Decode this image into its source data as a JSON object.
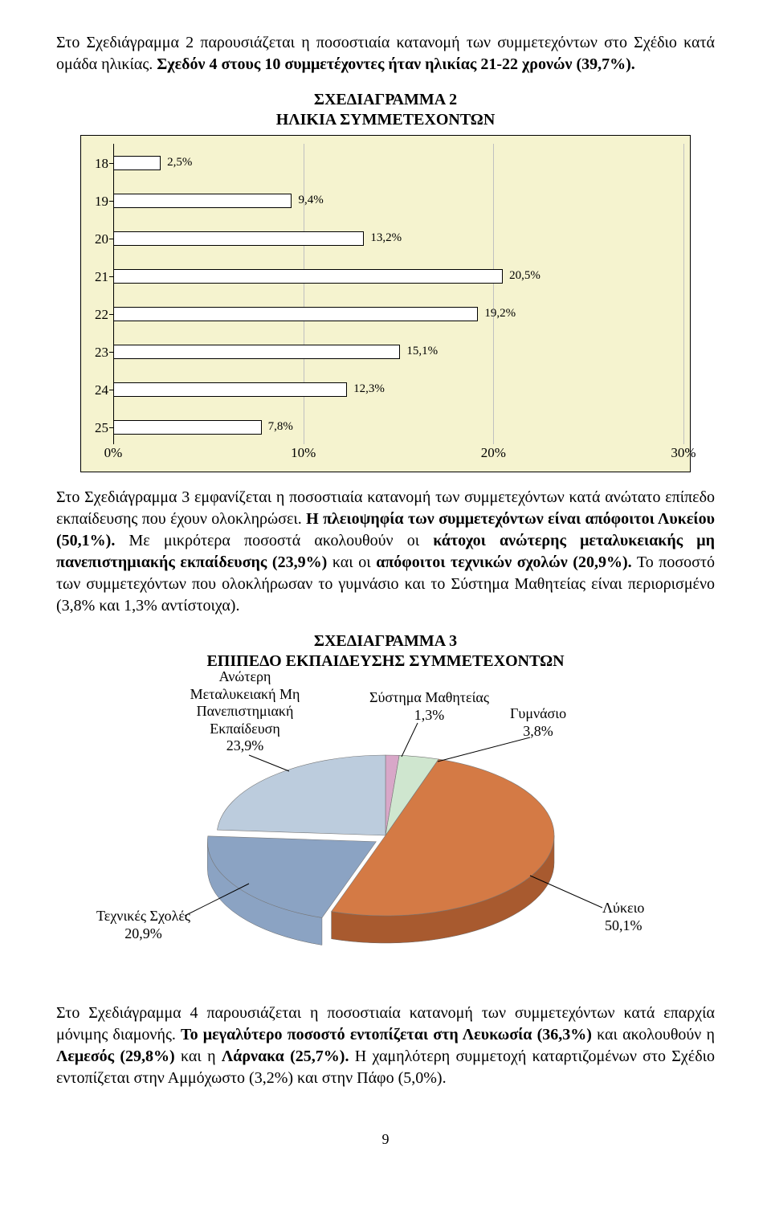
{
  "para1": {
    "t1": "Στο Σχεδιάγραμμα 2 παρουσιάζεται η ποσοστιαία κατανομή των συμμετεχόντων στο Σχέδιο κατά ομάδα ηλικίας.  ",
    "b1": "Σχεδόν 4 στους 10 συμμετέχοντες ήταν ηλικίας 21-22 χρονών (39,7%)."
  },
  "chart2": {
    "type": "bar-horizontal",
    "title_l1": "ΣΧΕΔΙΑΓΡΑΜΜΑ 2",
    "title_l2": "ΗΛΙΚΙΑ ΣΥΜΜΕΤΕΧΟΝΤΩΝ",
    "xlim_max": 30,
    "xticks": [
      {
        "pos": 0,
        "label": "0%"
      },
      {
        "pos": 10,
        "label": "10%"
      },
      {
        "pos": 20,
        "label": "20%"
      },
      {
        "pos": 30,
        "label": "30%"
      }
    ],
    "background": "#f5f3cf",
    "bar_color": "#ffffff",
    "bar_border": "#000000",
    "grid_color": "#c0c0c0",
    "rows": [
      {
        "cat": "18",
        "value": 2.5,
        "label": "2,5%"
      },
      {
        "cat": "19",
        "value": 9.4,
        "label": "9,4%"
      },
      {
        "cat": "20",
        "value": 13.2,
        "label": "13,2%"
      },
      {
        "cat": "21",
        "value": 20.5,
        "label": "20,5%"
      },
      {
        "cat": "22",
        "value": 19.2,
        "label": "19,2%"
      },
      {
        "cat": "23",
        "value": 15.1,
        "label": "15,1%"
      },
      {
        "cat": "24",
        "value": 12.3,
        "label": "12,3%"
      },
      {
        "cat": "25",
        "value": 7.8,
        "label": "7,8%"
      }
    ]
  },
  "para2": {
    "t1": "Στο Σχεδιάγραμμα 3 εμφανίζεται η ποσοστιαία κατανομή των συμμετεχόντων κατά ανώτατο επίπεδο εκπαίδευσης που έχουν ολοκληρώσει.  ",
    "b1": "Η πλειοψηφία των συμμετεχόντων είναι απόφοιτοι Λυκείου (50,1%).",
    "t2": "  Με μικρότερα ποσοστά ακολουθούν οι ",
    "b2": "κάτοχοι ανώτερης μεταλυκειακής μη πανεπιστημιακής εκπαίδευσης (23,9%)",
    "t3": " και οι ",
    "b3": "απόφοιτοι τεχνικών σχολών (20,9%).",
    "t4": "  Το ποσοστό των συμμετεχόντων που ολοκλήρωσαν το γυμνάσιο και το Σύστημα Μαθητείας είναι περιορισμένο (3,8% και 1,3% αντίστοιχα)."
  },
  "chart3": {
    "type": "pie-3d",
    "title_l1": "ΣΧΕΔΙΑΓΡΑΜΜΑ 3",
    "title_l2": "ΕΠΙΠΕΔΟ ΕΚΠΑΙΔΕΥΣΗΣ ΣΥΜΜΕΤΕΧΟΝΤΩΝ",
    "slices": [
      {
        "label_l1": "Λύκειο",
        "label_l2": "50,1%",
        "value": 50.1,
        "color_top": "#d47a45",
        "color_side": "#a85a2f"
      },
      {
        "label_l1": "Τεχνικές Σχολές",
        "label_l2": "20,9%",
        "value": 20.9,
        "color_top": "#8ba3c3",
        "color_side": "#8ba3c3"
      },
      {
        "label_l1": "Ανώτερη Μεταλυκειακή Μη Πανεπιστημιακή Εκπαίδευση",
        "label_l2": "23,9%",
        "value": 23.9,
        "color_top": "#bcccdd",
        "color_side": "#bcccdd"
      },
      {
        "label_l1": "Σύστημα Μαθητείας",
        "label_l2": "1,3%",
        "value": 1.3,
        "color_top": "#d8a7c8",
        "color_side": "#b785a6"
      },
      {
        "label_l1": "Γυμνάσιο",
        "label_l2": "3,8%",
        "value": 3.8,
        "color_top": "#cfe6cf",
        "color_side": "#a9c7a5"
      }
    ],
    "slice_mathiteias_label_l1": "Σύστημα Μαθητείας",
    "slice_mathiteias_label_l2": "1,3%",
    "slice_gymnasio_l1": "Γυμνάσιο",
    "slice_gymnasio_l2": "3,8%",
    "slice_anoteri_l": "Ανώτερη\nΜεταλυκειακή Μη\nΠανεπιστημιακή\nΕκπαίδευση\n23,9%",
    "slice_texnikes_l1": "Τεχνικές Σχολές",
    "slice_texnikes_l2": "20,9%",
    "slice_lykeio_l1": "Λύκειο",
    "slice_lykeio_l2": "50,1%"
  },
  "para3": {
    "t1": "Στο Σχεδιάγραμμα 4 παρουσιάζεται η ποσοστιαία κατανομή των συμμετεχόντων κατά επαρχία μόνιμης διαμονής.  ",
    "b1": "Το μεγαλύτερο ποσοστό εντοπίζεται στη Λευκωσία (36,3%)",
    "t2": " και ακολουθούν η ",
    "b2": "Λεμεσός (29,8%)",
    "t3": " και η ",
    "b3": "Λάρνακα (25,7%).",
    "t4": "  Η χαμηλότερη συμμετοχή καταρτιζομένων στο Σχέδιο εντοπίζεται στην Αμμόχωστο (3,2%) και στην Πάφο (5,0%)."
  },
  "page_number": "9"
}
